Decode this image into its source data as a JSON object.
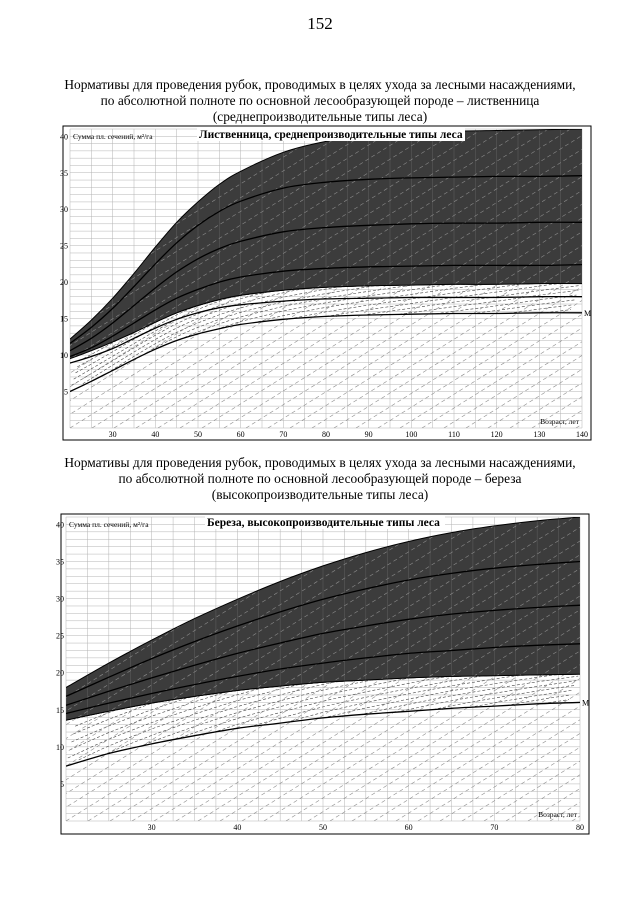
{
  "page_number": "152",
  "sections": [
    {
      "heading_lines": [
        "Нормативы для проведения рубок, проводимых в целях ухода за лесными насаждениями,",
        "по абсолютной полноте по основной лесообразующей породе – лиственница",
        "(среднепроизводительные типы леса)"
      ]
    },
    {
      "heading_lines": [
        "Нормативы для проведения рубок, проводимых в целях ухода за лесными насаждениями,",
        "по абсолютной полноте по основной лесообразующей породе – береза",
        "(высокопроизводительные типы леса)"
      ]
    }
  ],
  "colors": {
    "dark_band": "#3c3c3c",
    "grid": "#b4b4b4",
    "curve": "#000000",
    "background": "#ffffff"
  },
  "chart_data": [
    {
      "type": "line",
      "title": "Лиственница, среднепроизводительные типы леса",
      "ylabel": "Сумма пл. сечений, м²/га",
      "xlabel": "Возраст, лет",
      "xlim": [
        20,
        140
      ],
      "ylim": [
        0,
        41
      ],
      "x_ticks": [
        30,
        40,
        50,
        60,
        70,
        80,
        90,
        100,
        110,
        120,
        130,
        140
      ],
      "y_ticks": [
        5,
        10,
        15,
        20,
        25,
        30,
        35,
        40
      ],
      "end_label": "М",
      "grid": true,
      "x": [
        20,
        25,
        30,
        35,
        40,
        45,
        50,
        55,
        60,
        70,
        80,
        90,
        100,
        110,
        120,
        130,
        140
      ],
      "series": [
        {
          "role": "band_top",
          "values": [
            12.2,
            14.8,
            17.8,
            21.2,
            24.8,
            28.2,
            31.0,
            33.4,
            35.2,
            37.8,
            39.3,
            40.1,
            40.5,
            40.7,
            40.8,
            40.9,
            41.0
          ]
        },
        {
          "role": "band_bottom",
          "values": [
            9.5,
            10.6,
            11.8,
            13.1,
            14.5,
            15.8,
            16.8,
            17.6,
            18.2,
            18.9,
            19.3,
            19.5,
            19.6,
            19.7,
            19.7,
            19.8,
            19.8
          ]
        },
        {
          "role": "line",
          "values": [
            11.6,
            13.8,
            16.4,
            19.4,
            22.5,
            25.4,
            27.8,
            29.7,
            31.1,
            32.9,
            33.7,
            34.1,
            34.3,
            34.4,
            34.5,
            34.5,
            34.6
          ]
        },
        {
          "role": "line",
          "values": [
            10.6,
            12.3,
            14.4,
            16.8,
            19.2,
            21.4,
            23.2,
            24.6,
            25.6,
            26.9,
            27.5,
            27.8,
            28.0,
            28.1,
            28.1,
            28.2,
            28.2
          ]
        },
        {
          "role": "line",
          "values": [
            9.8,
            11.0,
            12.6,
            14.4,
            16.2,
            17.8,
            19.0,
            20.0,
            20.7,
            21.5,
            21.9,
            22.1,
            22.2,
            22.3,
            22.3,
            22.3,
            22.4
          ]
        },
        {
          "role": "line",
          "values": [
            8.9,
            9.8,
            10.9,
            12.3,
            13.7,
            14.9,
            15.8,
            16.5,
            16.9,
            17.4,
            17.7,
            17.8,
            17.9,
            17.9,
            17.9,
            18.0,
            18.0
          ]
        },
        {
          "role": "line",
          "values": [
            5.0,
            6.4,
            7.9,
            9.4,
            10.8,
            12.0,
            12.9,
            13.6,
            14.2,
            14.9,
            15.3,
            15.5,
            15.6,
            15.7,
            15.7,
            15.8,
            15.8
          ]
        }
      ]
    },
    {
      "type": "line",
      "title": "Береза, высокопроизводительные типы леса",
      "ylabel": "Сумма пл. сечений, м²/га",
      "xlabel": "Возраст, лет",
      "xlim": [
        20,
        80
      ],
      "ylim": [
        0,
        41
      ],
      "x_ticks": [
        30,
        40,
        50,
        60,
        70,
        80
      ],
      "y_ticks": [
        5,
        10,
        15,
        20,
        25,
        30,
        35,
        40
      ],
      "end_label": "М",
      "grid": true,
      "x": [
        20,
        25,
        30,
        35,
        40,
        45,
        50,
        55,
        60,
        65,
        70,
        75,
        80
      ],
      "series": [
        {
          "role": "band_top",
          "values": [
            18.0,
            21.3,
            24.4,
            27.3,
            29.9,
            32.3,
            34.4,
            36.2,
            37.7,
            38.9,
            39.8,
            40.5,
            41.0
          ]
        },
        {
          "role": "band_bottom",
          "values": [
            13.6,
            14.8,
            15.9,
            16.8,
            17.6,
            18.2,
            18.7,
            19.0,
            19.3,
            19.5,
            19.6,
            19.7,
            19.8
          ]
        },
        {
          "role": "line",
          "values": [
            16.8,
            19.4,
            21.9,
            24.2,
            26.3,
            28.2,
            29.9,
            31.3,
            32.5,
            33.4,
            34.1,
            34.6,
            35.0
          ]
        },
        {
          "role": "line",
          "values": [
            15.6,
            17.5,
            19.3,
            21.0,
            22.6,
            24.0,
            25.3,
            26.3,
            27.2,
            27.9,
            28.4,
            28.8,
            29.1
          ]
        },
        {
          "role": "line",
          "values": [
            14.5,
            15.9,
            17.2,
            18.4,
            19.5,
            20.5,
            21.3,
            22.0,
            22.6,
            23.0,
            23.4,
            23.7,
            23.9
          ]
        },
        {
          "role": "line",
          "values": [
            7.4,
            9.1,
            10.4,
            11.5,
            12.5,
            13.2,
            13.9,
            14.4,
            14.8,
            15.2,
            15.5,
            15.8,
            16.0
          ]
        }
      ]
    }
  ]
}
